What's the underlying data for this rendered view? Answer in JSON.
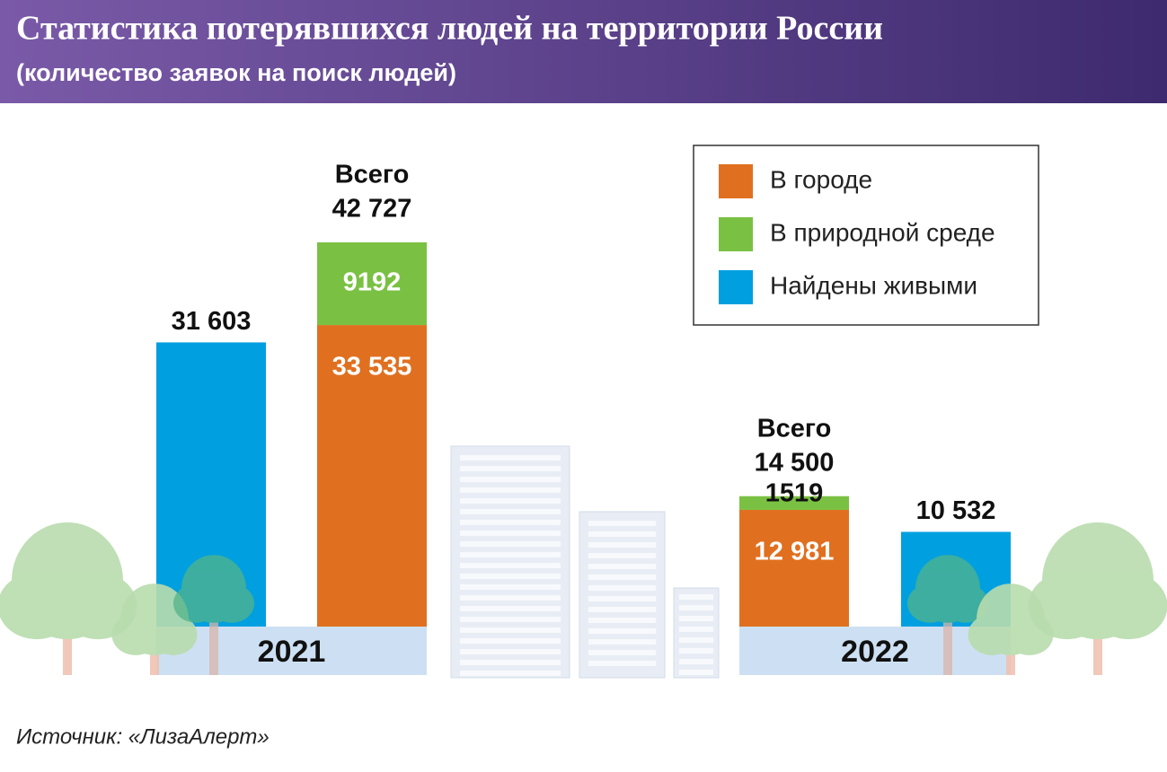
{
  "header": {
    "title": "Статистика потерявшихся людей на территории России",
    "subtitle": "(количество заявок на поиск людей)"
  },
  "chart_data": {
    "type": "bar",
    "categories": [
      "2021",
      "2022"
    ],
    "series": [
      {
        "name": "В городе",
        "color": "#e07020",
        "stacked": true,
        "values": [
          33535,
          12981
        ],
        "value_labels": [
          "33 535",
          "12 981"
        ]
      },
      {
        "name": "В природной среде",
        "color": "#7ac143",
        "stacked": true,
        "values": [
          9192,
          1519
        ]
      },
      {
        "name": "Найдены живыми",
        "color": "#009fe0",
        "stacked": false,
        "values": [
          31603,
          10532
        ],
        "value_labels": [
          "31 603",
          "10 532"
        ]
      }
    ],
    "totals": {
      "caption": "Всего",
      "values": [
        42727,
        14500
      ],
      "value_labels": [
        "42 727",
        "14 500"
      ]
    }
  },
  "source": "Источник: «ЛизаАлерт»"
}
